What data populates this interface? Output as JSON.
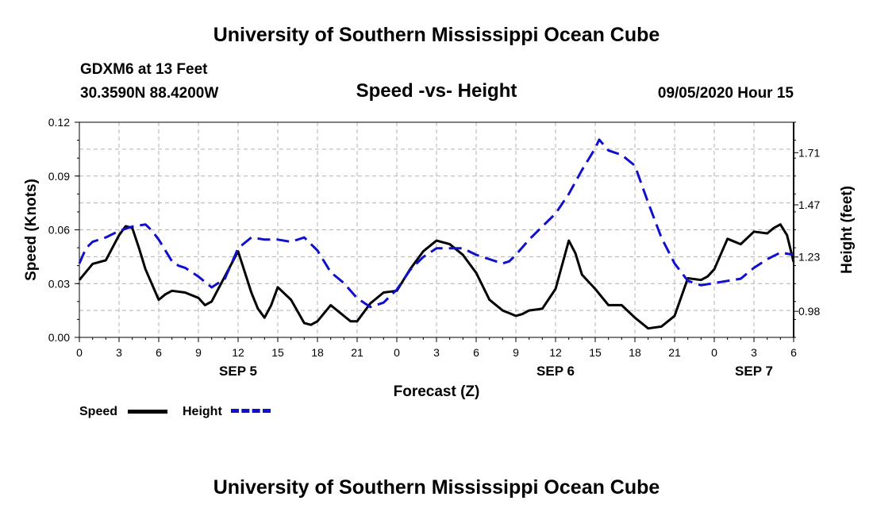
{
  "header": {
    "title_top": "University of Southern Mississippi Ocean Cube",
    "station": "GDXM6 at 13 Feet",
    "coords": "30.3590N 88.4200W",
    "plot_title": "Speed -vs- Height",
    "datetime": "09/05/2020 Hour 15",
    "title_bottom": "University of Southern Mississippi Ocean Cube"
  },
  "colors": {
    "speed": "#000000",
    "height": "#1010cc",
    "grid": "#b0b0b0"
  },
  "chart_data": {
    "type": "line",
    "title": "Speed -vs- Height",
    "xlabel": "Forecast (Z)",
    "ylabel": "Speed (Knots)",
    "y2label": "Height (feet)",
    "xlim": [
      0,
      54
    ],
    "ylim": [
      0,
      0.12
    ],
    "y2lim": [
      0.86,
      1.85
    ],
    "grid": true,
    "x_ticks": [
      0,
      3,
      6,
      9,
      12,
      15,
      18,
      21,
      24,
      27,
      30,
      33,
      36,
      39,
      42,
      45,
      48,
      51,
      54
    ],
    "x_tick_labels": [
      "0",
      "3",
      "6",
      "9",
      "12",
      "15",
      "18",
      "21",
      "0",
      "3",
      "6",
      "9",
      "12",
      "15",
      "18",
      "21",
      "0",
      "3",
      "6"
    ],
    "y_ticks": [
      0,
      0.03,
      0.06,
      0.09,
      0.12
    ],
    "y_tick_labels": [
      "0.00",
      "0.03",
      "0.06",
      "0.09",
      "0.12"
    ],
    "y2_ticks": [
      0.98,
      1.23,
      1.47,
      1.71
    ],
    "y2_tick_labels": [
      "0.98",
      "1.23",
      "1.47",
      "1.71"
    ],
    "date_labels": [
      {
        "x": 12,
        "label": "SEP 5"
      },
      {
        "x": 36,
        "label": "SEP 6"
      },
      {
        "x": 51,
        "label": "SEP 7"
      }
    ],
    "series": [
      {
        "name": "Speed",
        "axis": "left",
        "x": [
          0,
          1,
          2,
          3,
          3.5,
          4,
          4.5,
          5,
          6,
          6.5,
          7,
          8,
          9,
          9.5,
          10,
          11,
          12,
          13,
          13.5,
          14,
          14.5,
          15,
          16,
          17,
          17.5,
          18,
          19,
          20,
          20.5,
          21,
          22,
          23,
          24,
          25,
          26,
          27,
          28,
          29,
          30,
          31,
          32,
          33,
          33.5,
          34,
          35,
          36,
          37,
          37.5,
          38,
          39,
          40,
          40.5,
          41,
          42,
          43,
          44,
          45,
          46,
          47,
          47.5,
          48,
          49,
          50,
          51,
          52,
          52.5,
          53,
          53.5,
          54
        ],
        "values": [
          0.032,
          0.041,
          0.043,
          0.057,
          0.062,
          0.061,
          0.05,
          0.038,
          0.021,
          0.024,
          0.026,
          0.025,
          0.022,
          0.018,
          0.02,
          0.034,
          0.048,
          0.025,
          0.016,
          0.011,
          0.018,
          0.028,
          0.021,
          0.008,
          0.007,
          0.009,
          0.018,
          0.012,
          0.009,
          0.009,
          0.019,
          0.025,
          0.026,
          0.038,
          0.048,
          0.054,
          0.052,
          0.046,
          0.036,
          0.021,
          0.015,
          0.012,
          0.013,
          0.015,
          0.016,
          0.027,
          0.054,
          0.047,
          0.035,
          0.027,
          0.018,
          0.018,
          0.018,
          0.011,
          0.005,
          0.006,
          0.012,
          0.033,
          0.032,
          0.034,
          0.038,
          0.055,
          0.052,
          0.059,
          0.058,
          0.061,
          0.063,
          0.057,
          0.042
        ]
      },
      {
        "name": "Height",
        "axis": "right",
        "x": [
          0,
          0.5,
          1,
          2,
          3,
          4,
          5,
          5.5,
          6,
          7,
          7.5,
          8,
          9,
          10,
          11,
          12,
          13,
          14,
          15,
          16,
          17,
          18,
          19,
          20,
          21,
          22,
          23,
          24,
          25,
          26,
          27,
          28,
          29,
          30,
          31,
          32,
          32.5,
          33,
          34,
          35,
          36,
          37,
          38,
          39,
          39.3,
          40,
          41,
          42,
          43,
          44,
          45,
          46,
          47,
          48,
          49,
          50,
          51,
          52,
          53,
          54
        ],
        "values": [
          1.2,
          1.27,
          1.3,
          1.32,
          1.35,
          1.37,
          1.38,
          1.35,
          1.31,
          1.21,
          1.19,
          1.18,
          1.14,
          1.09,
          1.13,
          1.27,
          1.32,
          1.31,
          1.31,
          1.3,
          1.32,
          1.26,
          1.16,
          1.11,
          1.04,
          1.0,
          1.02,
          1.08,
          1.17,
          1.23,
          1.27,
          1.27,
          1.27,
          1.24,
          1.22,
          1.2,
          1.21,
          1.24,
          1.31,
          1.37,
          1.43,
          1.52,
          1.63,
          1.73,
          1.77,
          1.72,
          1.7,
          1.65,
          1.48,
          1.32,
          1.2,
          1.12,
          1.1,
          1.11,
          1.12,
          1.13,
          1.18,
          1.22,
          1.25,
          1.24
        ]
      }
    ]
  },
  "legend": {
    "speed_label": "Speed",
    "height_label": "Height"
  }
}
